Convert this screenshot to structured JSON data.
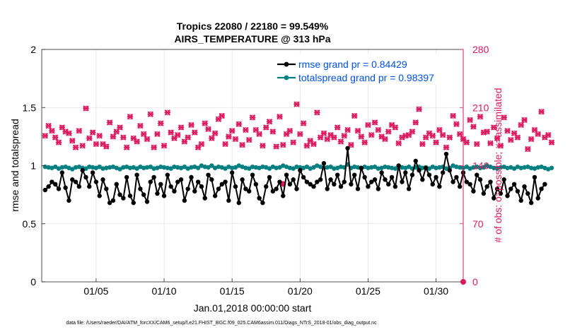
{
  "chart_data": {
    "type": "line",
    "title_line1": "Tropics 22080 / 22180 = 99.549%",
    "title_line2": "AIRS_TEMPERATURE @ 313 hPa",
    "xlabel": "Jan.01,2018 00:00:00 start",
    "ylabel_left": "rmse and totalspread",
    "ylabel_right": "# of obs: o=possible; ×=assimilated",
    "footnote": "data file: /Users/raeder/DAI/ATM_forcXX/CAM6_setup/f.e21.FHIST_BGC.f09_025.CAM6assim.011/Diags_NTrS_2018-01/obs_diag_output.nc",
    "xlim": [
      1,
      32
    ],
    "ylim_left": [
      0,
      2
    ],
    "ylim_right": [
      0,
      280
    ],
    "x_ticks": [
      5,
      10,
      15,
      20,
      25,
      30
    ],
    "x_tick_labels": [
      "01/05",
      "01/10",
      "01/15",
      "01/20",
      "01/25",
      "01/30"
    ],
    "y_left_ticks": [
      0,
      0.5,
      1,
      1.5,
      2
    ],
    "y_left_tick_labels": [
      "0",
      "0.5",
      "1",
      "1.5",
      "2"
    ],
    "y_right_ticks": [
      0,
      70,
      140,
      210,
      280
    ],
    "y_right_tick_labels": [
      "0",
      "70",
      "140",
      "210",
      "280"
    ],
    "legend_position": "top-right",
    "series": [
      {
        "name": "rmse grand pr = 0.84429",
        "color": "#000000",
        "axis": "left",
        "x_start": 1.25,
        "x_step": 0.25,
        "values": [
          0.79,
          0.82,
          0.86,
          0.84,
          0.8,
          0.94,
          0.81,
          0.7,
          0.88,
          0.86,
          0.82,
          0.96,
          0.9,
          0.82,
          0.94,
          0.86,
          0.74,
          0.88,
          0.8,
          0.68,
          0.7,
          0.84,
          0.75,
          0.72,
          0.9,
          0.74,
          0.68,
          0.92,
          0.8,
          0.75,
          0.69,
          0.86,
          0.9,
          0.76,
          0.84,
          0.74,
          0.92,
          0.82,
          0.78,
          0.86,
          0.88,
          0.7,
          0.8,
          0.9,
          0.78,
          0.86,
          0.82,
          0.72,
          0.92,
          0.88,
          0.74,
          0.8,
          0.84,
          0.86,
          0.7,
          0.94,
          0.82,
          0.68,
          0.88,
          0.8,
          0.78,
          0.92,
          0.84,
          0.72,
          0.68,
          0.82,
          0.9,
          0.78,
          0.8,
          0.86,
          0.74,
          0.92,
          0.84,
          0.88,
          0.8,
          0.96,
          0.9,
          0.86,
          0.84,
          0.82,
          0.86,
          0.88,
          1.02,
          0.8,
          0.88,
          0.84,
          0.92,
          0.82,
          0.86,
          1.15,
          0.84,
          0.92,
          0.8,
          0.98,
          0.9,
          0.82,
          0.86,
          0.88,
          0.8,
          0.94,
          0.88,
          0.84,
          0.9,
          0.82,
          1.0,
          0.86,
          0.94,
          0.8,
          0.92,
          1.04,
          0.96,
          0.88,
          0.98,
          0.92,
          0.84,
          0.9,
          0.82,
          0.94,
          1.1,
          0.96,
          0.86,
          0.9,
          0.82,
          0.94,
          0.86,
          0.84,
          0.78,
          0.92,
          0.88,
          0.76,
          0.82,
          0.86,
          0.72,
          0.8,
          0.76,
          0.88,
          0.74,
          0.8,
          0.84,
          0.78,
          0.7,
          0.82,
          0.76,
          0.68,
          0.9,
          0.72,
          0.8,
          0.84
        ]
      },
      {
        "name": "totalspread grand pr = 0.98397",
        "color": "#008080",
        "axis": "left",
        "x_start": 1.25,
        "x_step": 0.25,
        "values": [
          0.99,
          0.985,
          0.98,
          0.99,
          0.975,
          0.985,
          0.99,
          0.98,
          0.97,
          0.985,
          0.99,
          0.98,
          0.975,
          0.99,
          0.985,
          0.98,
          0.99,
          0.975,
          0.98,
          0.985,
          0.99,
          0.98,
          0.97,
          0.985,
          0.99,
          0.98,
          0.985,
          0.975,
          0.99,
          0.98,
          0.985,
          0.99,
          0.975,
          0.98,
          0.99,
          0.985,
          0.98,
          0.975,
          0.99,
          0.985,
          0.98,
          0.99,
          0.975,
          0.985,
          0.99,
          0.98,
          1.0,
          0.99,
          0.985,
          1.0,
          0.98,
          0.99,
          0.985,
          0.975,
          0.99,
          0.98,
          0.985,
          1.0,
          0.99,
          0.98,
          0.975,
          0.99,
          0.985,
          0.98,
          0.99,
          0.985,
          0.975,
          0.99,
          0.98,
          0.985,
          1.0,
          0.99,
          0.98,
          0.975,
          0.99,
          0.985,
          0.98,
          0.99,
          0.975,
          0.985,
          1.0,
          0.99,
          0.98,
          0.985,
          0.99,
          0.975,
          0.98,
          0.99,
          0.985,
          1.01,
          0.98,
          0.99,
          0.985,
          0.975,
          0.99,
          0.98,
          0.985,
          0.99,
          0.975,
          0.98,
          0.99,
          0.985,
          0.98,
          0.975,
          0.99,
          0.985,
          0.98,
          0.99,
          0.975,
          0.985,
          0.99,
          0.98,
          0.985,
          0.975,
          0.99,
          0.98,
          0.985,
          0.99,
          0.975,
          0.98,
          1.0,
          0.99,
          0.985,
          0.98,
          0.99,
          0.975,
          0.985,
          0.99,
          0.98,
          0.985,
          1.0,
          0.99,
          0.98,
          0.975,
          0.985,
          0.99,
          0.98,
          0.985,
          0.975,
          0.99,
          0.98,
          0.985,
          0.99,
          0.98,
          0.975,
          0.985,
          0.99,
          0.98,
          0.97,
          0.98
        ]
      },
      {
        "name": "# obs possible / assimilated",
        "color": "#dd1a5f",
        "axis": "right",
        "x_start": 1.25,
        "x_step": 0.25,
        "values": [
          176,
          188,
          182,
          174,
          168,
          186,
          181,
          179,
          170,
          162,
          182,
          164,
          209,
          173,
          180,
          166,
          176,
          166,
          163,
          192,
          175,
          181,
          186,
          174,
          162,
          199,
          173,
          169,
          188,
          178,
          172,
          202,
          162,
          178,
          191,
          164,
          204,
          180,
          173,
          177,
          186,
          169,
          174,
          189,
          180,
          162,
          166,
          191,
          184,
          173,
          179,
          196,
          200,
          166,
          175,
          182,
          172,
          190,
          165,
          183,
          171,
          198,
          183,
          178,
          164,
          186,
          193,
          181,
          163,
          199,
          165,
          178,
          182,
          168,
          214,
          178,
          191,
          164,
          170,
          166,
          204,
          174,
          179,
          172,
          177,
          174,
          186,
          169,
          176,
          183,
          165,
          200,
          182,
          175,
          168,
          189,
          177,
          192,
          183,
          175,
          172,
          181,
          189,
          186,
          167,
          174,
          176,
          177,
          181,
          192,
          208,
          166,
          174,
          179,
          176,
          168,
          183,
          177,
          162,
          174,
          200,
          190,
          178,
          172,
          168,
          195,
          187,
          166,
          199,
          180,
          181,
          167,
          186,
          173,
          164,
          198,
          182,
          171,
          179,
          174,
          189,
          195,
          160,
          172,
          183,
          178,
          205,
          174,
          177,
          168
        ],
        "extra_points": [
          {
            "x": 18.75,
            "y": 118
          },
          {
            "x": 32,
            "y": 0
          }
        ]
      }
    ]
  }
}
